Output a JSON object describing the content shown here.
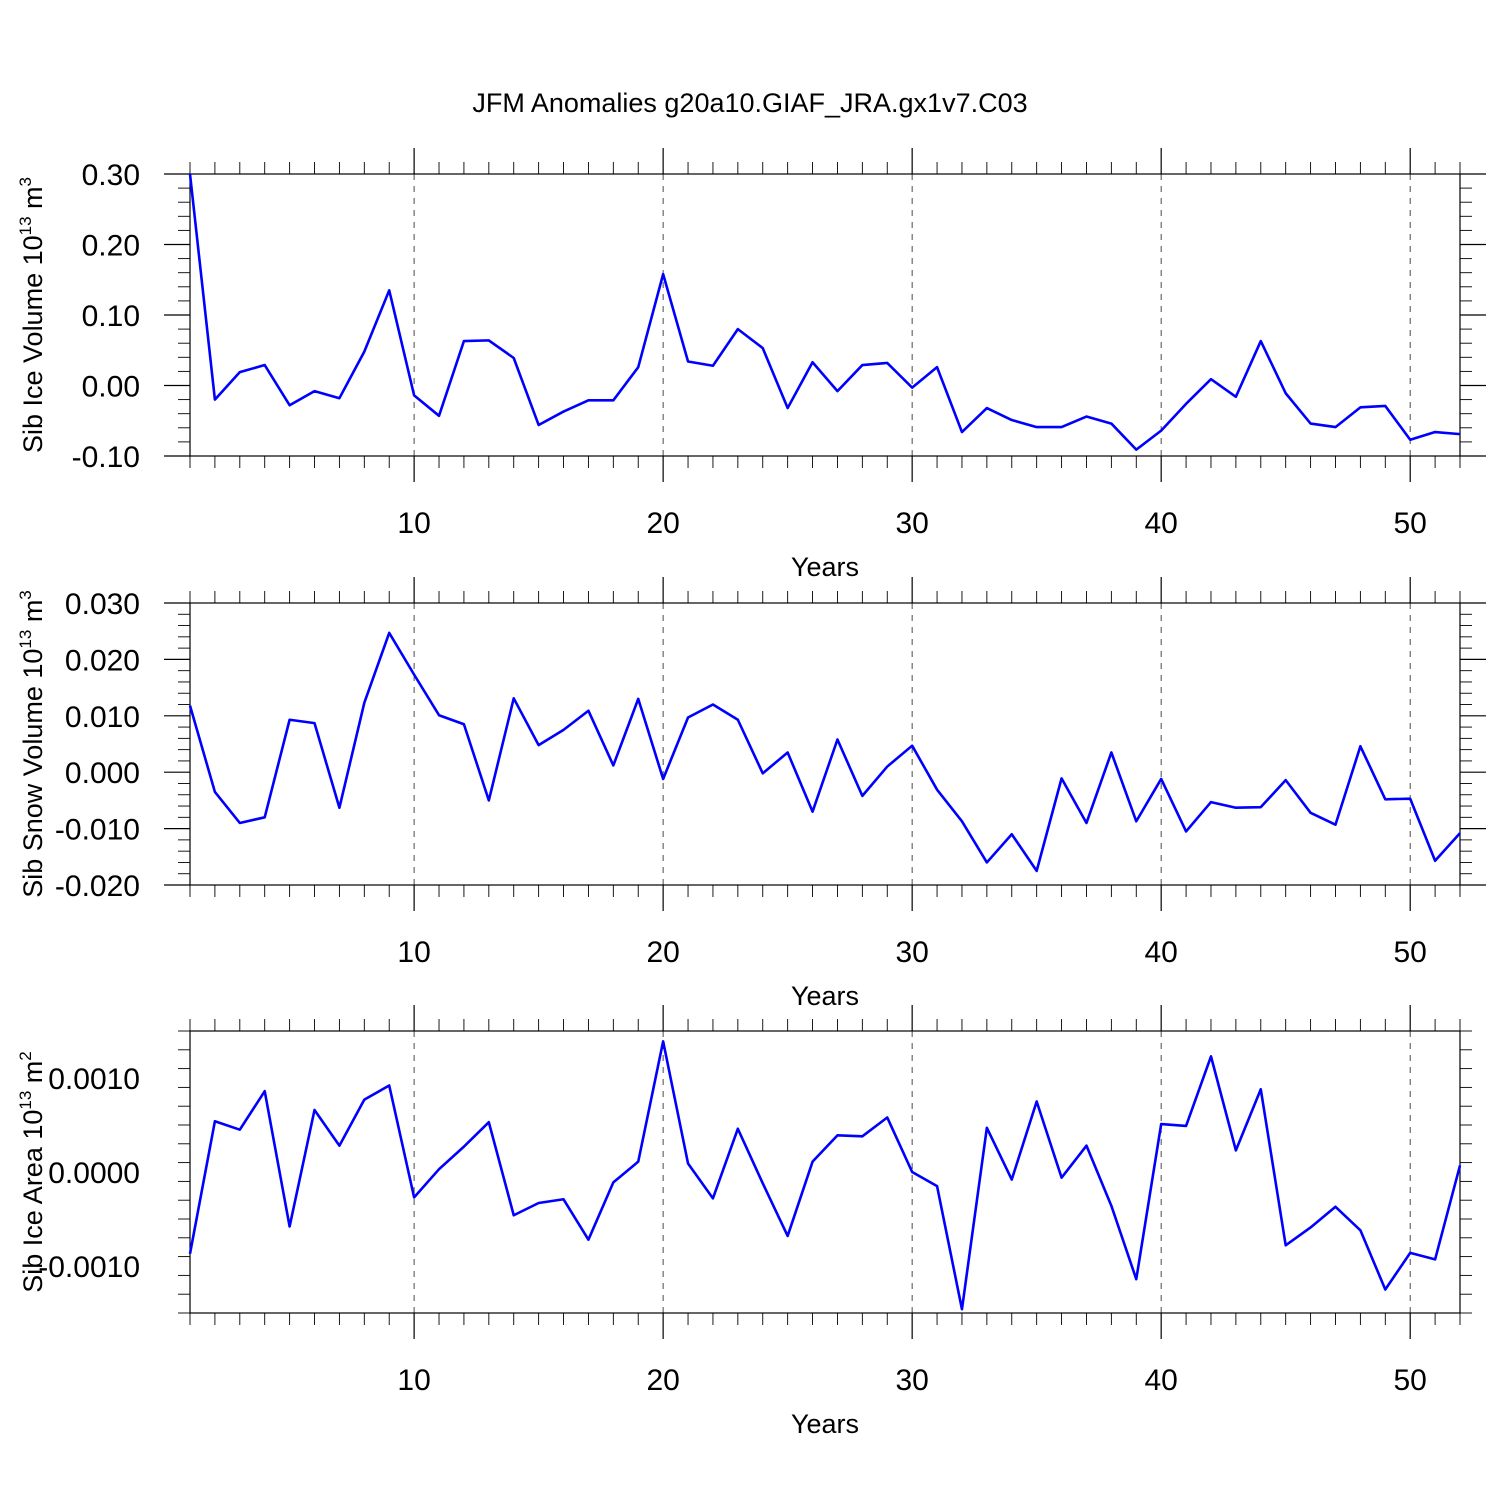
{
  "figure": {
    "title": "JFM Anomalies g20a10.GIAF_JRA.gx1v7.C03",
    "line_color": "#0000ff"
  },
  "chart_data": [
    {
      "type": "line",
      "title": "JFM Anomalies g20a10.GIAF_JRA.gx1v7.C03",
      "xlabel": "Years",
      "ylabel": "Sib Ice Volume 10",
      "ylabel_sup": "13",
      "ylabel_unit": "m",
      "ylabel_unit_sup": "3",
      "xlim": [
        1,
        52
      ],
      "ylim": [
        -0.1,
        0.3
      ],
      "xticks": [
        10,
        20,
        30,
        40,
        50
      ],
      "xtick_labels": [
        "10",
        "20",
        "30",
        "40",
        "50"
      ],
      "yticks": [
        -0.1,
        0.0,
        0.1,
        0.2,
        0.3
      ],
      "ytick_labels": [
        "-0.10",
        "0.00",
        "0.10",
        "0.20",
        "0.30"
      ],
      "grid": "vertical dashed at major x ticks",
      "x": [
        1,
        2,
        3,
        4,
        5,
        6,
        7,
        8,
        9,
        10,
        11,
        12,
        13,
        14,
        15,
        16,
        17,
        18,
        19,
        20,
        21,
        22,
        23,
        24,
        25,
        26,
        27,
        28,
        29,
        30,
        31,
        32,
        33,
        34,
        35,
        36,
        37,
        38,
        39,
        40,
        41,
        42,
        43,
        44,
        45,
        46,
        47,
        48,
        49,
        50,
        51,
        52
      ],
      "series": [
        {
          "name": "Sib Ice Volume",
          "values": [
            0.3,
            -0.02,
            0.019,
            0.029,
            -0.028,
            -0.008,
            -0.018,
            0.048,
            0.135,
            -0.014,
            -0.043,
            0.063,
            0.064,
            0.039,
            -0.056,
            -0.037,
            -0.021,
            -0.021,
            0.026,
            0.158,
            0.034,
            0.028,
            0.08,
            0.053,
            -0.032,
            0.033,
            -0.008,
            0.029,
            0.032,
            -0.003,
            0.026,
            -0.066,
            -0.032,
            -0.049,
            -0.059,
            -0.059,
            -0.044,
            -0.054,
            -0.091,
            -0.064,
            -0.026,
            0.009,
            -0.016,
            0.063,
            -0.011,
            -0.054,
            -0.059,
            -0.031,
            -0.029,
            -0.077,
            -0.066,
            -0.069
          ]
        }
      ]
    },
    {
      "type": "line",
      "xlabel": "Years",
      "ylabel": "Sib Snow Volume 10",
      "ylabel_sup": "13",
      "ylabel_unit": "m",
      "ylabel_unit_sup": "3",
      "xlim": [
        1,
        52
      ],
      "ylim": [
        -0.02,
        0.03
      ],
      "xticks": [
        10,
        20,
        30,
        40,
        50
      ],
      "xtick_labels": [
        "10",
        "20",
        "30",
        "40",
        "50"
      ],
      "yticks": [
        -0.02,
        -0.01,
        0.0,
        0.01,
        0.02,
        0.03
      ],
      "ytick_labels": [
        "-0.020",
        "-0.010",
        "0.000",
        "0.010",
        "0.020",
        "0.030"
      ],
      "grid": "vertical dashed at major x ticks",
      "x": [
        1,
        2,
        3,
        4,
        5,
        6,
        7,
        8,
        9,
        10,
        11,
        12,
        13,
        14,
        15,
        16,
        17,
        18,
        19,
        20,
        21,
        22,
        23,
        24,
        25,
        26,
        27,
        28,
        29,
        30,
        31,
        32,
        33,
        34,
        35,
        36,
        37,
        38,
        39,
        40,
        41,
        42,
        43,
        44,
        45,
        46,
        47,
        48,
        49,
        50,
        51,
        52
      ],
      "series": [
        {
          "name": "Sib Snow Volume",
          "values": [
            0.0118,
            -0.0035,
            -0.009,
            -0.008,
            0.0093,
            0.0087,
            -0.0063,
            0.0123,
            0.0247,
            0.0173,
            0.0101,
            0.0085,
            -0.005,
            0.0131,
            0.0048,
            0.0075,
            0.0109,
            0.0012,
            0.013,
            -0.0012,
            0.0097,
            0.012,
            0.0093,
            -0.0002,
            0.0035,
            -0.007,
            0.0058,
            -0.0042,
            0.001,
            0.0047,
            -0.0031,
            -0.0087,
            -0.016,
            -0.011,
            -0.0175,
            -0.0011,
            -0.009,
            0.0035,
            -0.0087,
            -0.0012,
            -0.0105,
            -0.0053,
            -0.0063,
            -0.0062,
            -0.0014,
            -0.0072,
            -0.0093,
            0.0046,
            -0.0048,
            -0.0047,
            -0.0157,
            -0.0108
          ]
        }
      ]
    },
    {
      "type": "line",
      "xlabel": "Years",
      "ylabel": "Sib Ice Area 10",
      "ylabel_sup": "13",
      "ylabel_unit": "m",
      "ylabel_unit_sup": "2",
      "xlim": [
        1,
        52
      ],
      "ylim": [
        -0.0015,
        0.0015
      ],
      "xticks": [
        10,
        20,
        30,
        40,
        50
      ],
      "xtick_labels": [
        "10",
        "20",
        "30",
        "40",
        "50"
      ],
      "yticks": [
        -0.001,
        0.0,
        0.001
      ],
      "ytick_labels": [
        "-0.0010",
        "0.0000",
        "0.0010"
      ],
      "grid": "vertical dashed at major x ticks",
      "x": [
        1,
        2,
        3,
        4,
        5,
        6,
        7,
        8,
        9,
        10,
        11,
        12,
        13,
        14,
        15,
        16,
        17,
        18,
        19,
        20,
        21,
        22,
        23,
        24,
        25,
        26,
        27,
        28,
        29,
        30,
        31,
        32,
        33,
        34,
        35,
        36,
        37,
        38,
        39,
        40,
        41,
        42,
        43,
        44,
        45,
        46,
        47,
        48,
        49,
        50,
        51,
        52
      ],
      "series": [
        {
          "name": "Sib Ice Area",
          "values": [
            -0.00087,
            0.00054,
            0.00045,
            0.00086,
            -0.00058,
            0.00066,
            0.00028,
            0.00077,
            0.00092,
            -0.00027,
            3e-05,
            0.00027,
            0.00053,
            -0.00046,
            -0.00033,
            -0.00029,
            -0.00072,
            -0.00011,
            0.00011,
            0.00139,
            9e-05,
            -0.00028,
            0.00046,
            -0.00012,
            -0.00068,
            0.00011,
            0.00039,
            0.00038,
            0.00058,
            0.0,
            -0.00015,
            -0.00146,
            0.00047,
            -8e-05,
            0.00075,
            -6e-05,
            0.00028,
            -0.00036,
            -0.00114,
            0.00051,
            0.00049,
            0.00123,
            0.00023,
            0.00088,
            -0.00078,
            -0.00059,
            -0.00037,
            -0.00062,
            -0.00125,
            -0.00086,
            -0.00093,
            7e-05
          ]
        }
      ]
    }
  ]
}
